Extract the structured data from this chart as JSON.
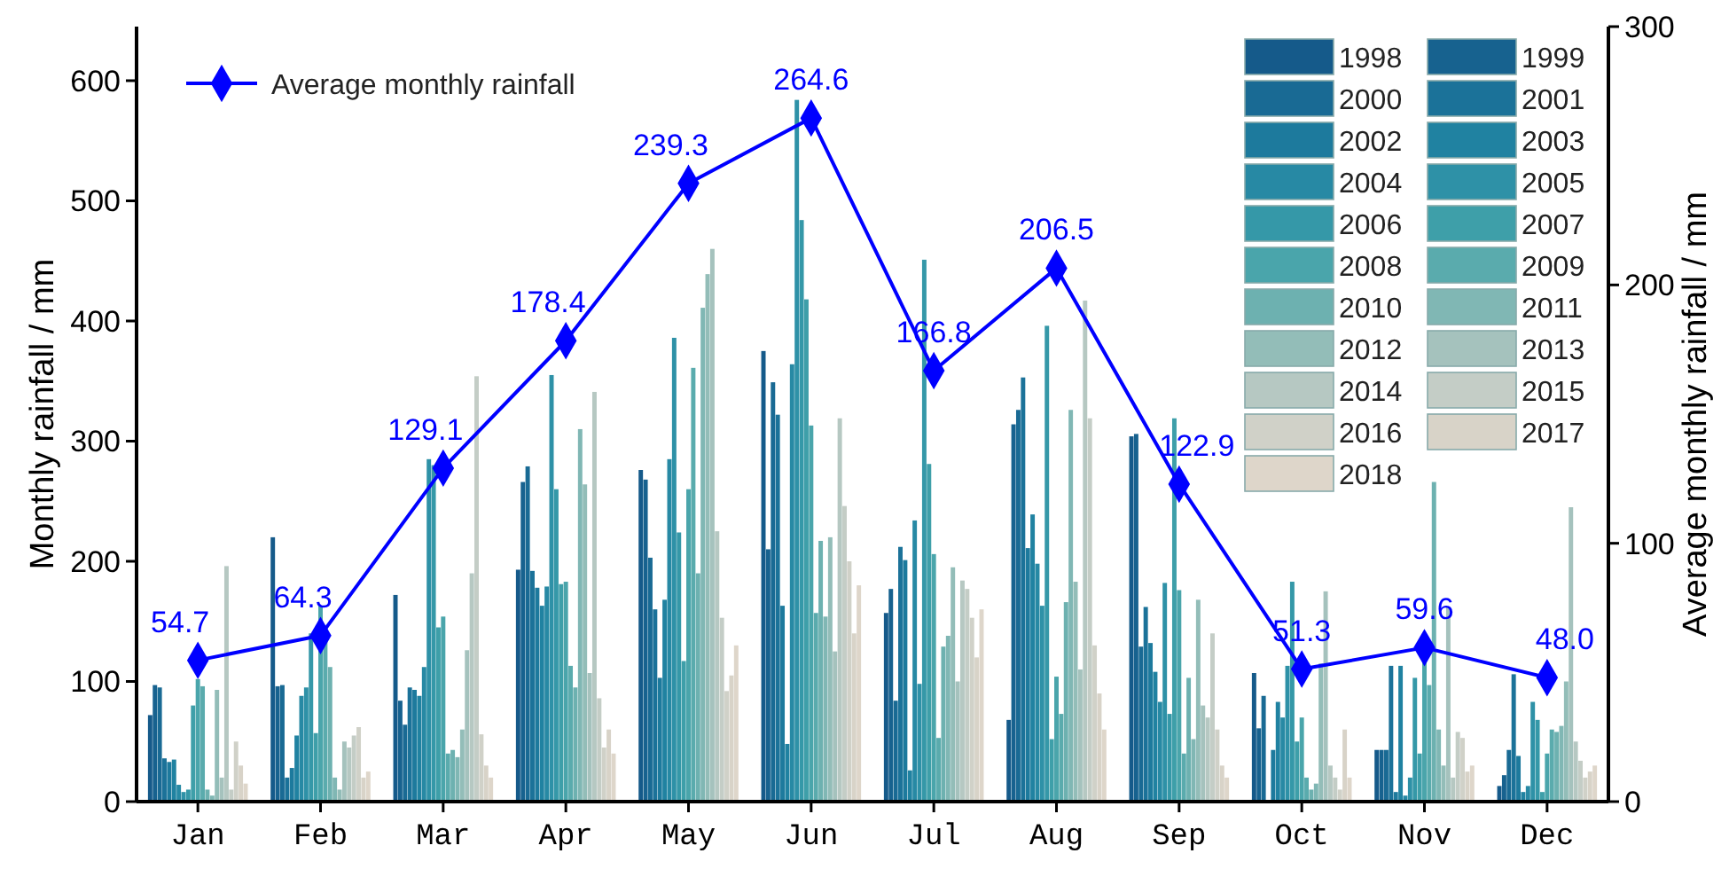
{
  "chart_data": {
    "type": "bar",
    "categories": [
      "Jan",
      "Feb",
      "Mar",
      "Apr",
      "May",
      "Jun",
      "Jul",
      "Aug",
      "Sep",
      "Oct",
      "Nov",
      "Dec"
    ],
    "ylabel": "Monthly rainfall / mm",
    "y2label": "Average monthly rainfall / mm",
    "ylim": [
      0,
      645
    ],
    "yticks": [
      0,
      100,
      200,
      300,
      400,
      500,
      600
    ],
    "y2lim": [
      0,
      300
    ],
    "y2ticks": [
      0,
      100,
      200,
      300
    ],
    "legend": "top right",
    "grid": false,
    "series": [
      {
        "name": "1998",
        "color": "#155a8a",
        "values": [
          72,
          220,
          172,
          193,
          276,
          375,
          157,
          68,
          304,
          107,
          43,
          13
        ]
      },
      {
        "name": "1999",
        "color": "#17628f",
        "values": [
          97,
          96,
          84,
          266,
          268,
          210,
          177,
          314,
          306,
          61,
          43,
          22
        ]
      },
      {
        "name": "2000",
        "color": "#196a94",
        "values": [
          95,
          97,
          64,
          279,
          203,
          349,
          84,
          326,
          129,
          88,
          43,
          43
        ]
      },
      {
        "name": "2001",
        "color": "#1b7299",
        "values": [
          36,
          20,
          95,
          192,
          160,
          322,
          212,
          353,
          162,
          null,
          113,
          106
        ]
      },
      {
        "name": "2002",
        "color": "#1d7a9d",
        "values": [
          33,
          28,
          93,
          178,
          103,
          163,
          201,
          211,
          132,
          43,
          8,
          38
        ]
      },
      {
        "name": "2003",
        "color": "#2082a1",
        "values": [
          35,
          55,
          88,
          163,
          168,
          48,
          26,
          239,
          108,
          83,
          113,
          8
        ]
      },
      {
        "name": "2004",
        "color": "#2789a4",
        "values": [
          14,
          88,
          112,
          179,
          285,
          364,
          234,
          198,
          83,
          70,
          5,
          13
        ]
      },
      {
        "name": "2005",
        "color": "#2e91a7",
        "values": [
          8,
          95,
          285,
          355,
          386,
          584,
          98,
          163,
          182,
          113,
          20,
          83
        ]
      },
      {
        "name": "2006",
        "color": "#3598a8",
        "values": [
          10,
          140,
          280,
          260,
          224,
          484,
          451,
          396,
          73,
          183,
          103,
          68
        ]
      },
      {
        "name": "2007",
        "color": "#3e9fa9",
        "values": [
          80,
          57,
          145,
          181,
          117,
          418,
          281,
          52,
          319,
          50,
          40,
          8
        ]
      },
      {
        "name": "2008",
        "color": "#4aa5ab",
        "values": [
          102,
          163,
          154,
          183,
          260,
          313,
          206,
          104,
          176,
          70,
          120,
          40
        ]
      },
      {
        "name": "2009",
        "color": "#5aabad",
        "values": [
          96,
          145,
          40,
          113,
          361,
          157,
          53,
          73,
          40,
          20,
          97,
          60
        ]
      },
      {
        "name": "2010",
        "color": "#6db1b0",
        "values": [
          10,
          112,
          43,
          95,
          190,
          217,
          129,
          166,
          103,
          10,
          266,
          58
        ]
      },
      {
        "name": "2011",
        "color": "#80b7b4",
        "values": [
          5,
          20,
          37,
          310,
          411,
          154,
          138,
          326,
          52,
          15,
          60,
          63
        ]
      },
      {
        "name": "2012",
        "color": "#93bdb8",
        "values": [
          93,
          10,
          60,
          264,
          439,
          220,
          195,
          183,
          168,
          115,
          30,
          100
        ]
      },
      {
        "name": "2013",
        "color": "#a5c2bd",
        "values": [
          20,
          50,
          126,
          107,
          460,
          125,
          100,
          110,
          80,
          175,
          162,
          245
        ]
      },
      {
        "name": "2014",
        "color": "#b6c8c2",
        "values": [
          196,
          45,
          190,
          341,
          225,
          319,
          184,
          417,
          70,
          30,
          20,
          50
        ]
      },
      {
        "name": "2015",
        "color": "#c4cdc6",
        "values": [
          10,
          55,
          354,
          86,
          153,
          246,
          177,
          319,
          140,
          20,
          58,
          34
        ]
      },
      {
        "name": "2016",
        "color": "#d0d1c8",
        "values": [
          50,
          62,
          56,
          45,
          92,
          200,
          153,
          130,
          60,
          10,
          53,
          20
        ]
      },
      {
        "name": "2017",
        "color": "#d8d3c8",
        "values": [
          30,
          20,
          30,
          60,
          105,
          140,
          120,
          90,
          30,
          60,
          25,
          25
        ]
      },
      {
        "name": "2018",
        "color": "#ded6ca",
        "values": [
          15,
          25,
          20,
          40,
          130,
          180,
          160,
          60,
          20,
          20,
          30,
          30
        ]
      },
      {
        "name": "Average monthly rainfall",
        "type": "line",
        "axis": "y2",
        "color": "#0000ff",
        "marker": "diamond",
        "values": [
          54.7,
          64.3,
          129.1,
          178.4,
          239.3,
          264.6,
          166.8,
          206.5,
          122.9,
          51.3,
          59.6,
          48.0
        ],
        "value_labels": [
          "54.7",
          "64.3",
          "129.1",
          "178.4",
          "239.3",
          "264.6",
          "166.8",
          "206.5",
          "122.9",
          "51.3",
          "59.6",
          "48.0"
        ]
      }
    ]
  }
}
